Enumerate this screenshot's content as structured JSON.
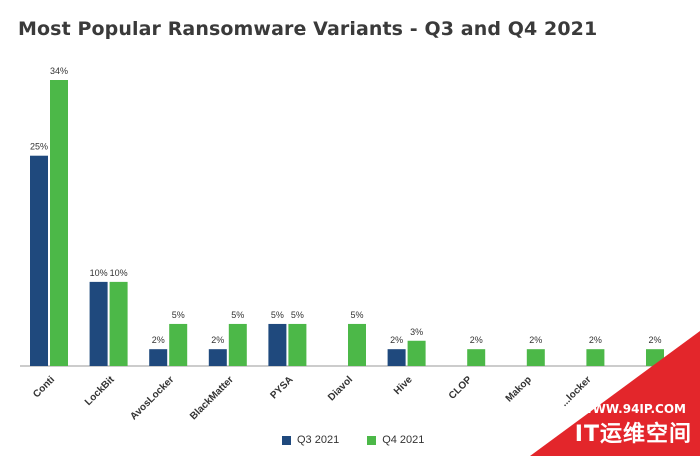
{
  "page_title": "Most Popular Ransomware Variants - Q3 and Q4 2021",
  "chart_data": {
    "type": "bar",
    "title": "Most Popular Ransomware Variants - Q3 and Q4 2021",
    "categories": [
      "Conti",
      "LockBit",
      "AvosLocker",
      "BlackMatter",
      "PYSA",
      "Diavol",
      "Hive",
      "CLOP",
      "Makop",
      "...locker",
      ""
    ],
    "series": [
      {
        "name": "Q3 2021",
        "color": "#1f497d",
        "values": [
          25,
          10,
          2,
          2,
          5,
          null,
          2,
          null,
          null,
          null,
          null
        ]
      },
      {
        "name": "Q4 2021",
        "color": "#4cb848",
        "values": [
          34,
          10,
          5,
          5,
          5,
          5,
          3,
          2,
          2,
          2,
          2
        ]
      }
    ],
    "value_suffix": "%",
    "ylim": [
      0,
      36
    ],
    "grid": false,
    "legend_position": "bottom-center"
  },
  "legend": {
    "items": [
      {
        "label": "Q3 2021",
        "color": "#1f497d"
      },
      {
        "label": "Q4 2021",
        "color": "#4cb848"
      }
    ]
  },
  "watermark": {
    "url": "WWW.94IP.COM",
    "name": "IT运维空间",
    "color": "#e3262b"
  }
}
